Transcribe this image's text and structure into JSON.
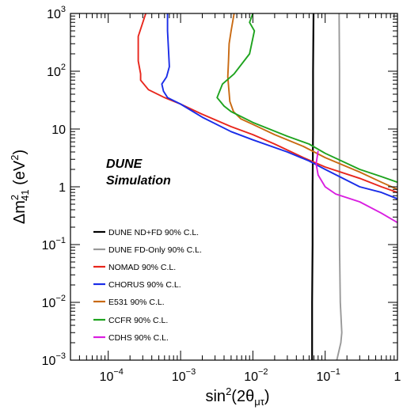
{
  "chart_data": {
    "type": "line",
    "title": "",
    "xlabel": {
      "base": "sin",
      "sup": "2",
      "rest": "(2θ",
      "sub": "μτ",
      "end": ")"
    },
    "ylabel": {
      "pre": "Δm",
      "sup": "2",
      "sub": "41",
      "post": " (eV",
      "unitsup": "2",
      "close": ")"
    },
    "xscale": "log",
    "yscale": "log",
    "xlim": [
      3e-05,
      1
    ],
    "ylim": [
      0.001,
      1000
    ],
    "x_ticks": [
      {
        "value": 0.0001,
        "base": "10",
        "exp": "−4"
      },
      {
        "value": 0.001,
        "base": "10",
        "exp": "−3"
      },
      {
        "value": 0.01,
        "base": "10",
        "exp": "−2"
      },
      {
        "value": 0.1,
        "base": "10",
        "exp": "−1"
      },
      {
        "value": 1,
        "base": "1",
        "exp": ""
      }
    ],
    "y_ticks": [
      {
        "value": 0.001,
        "base": "10",
        "exp": "−3"
      },
      {
        "value": 0.01,
        "base": "10",
        "exp": "−2"
      },
      {
        "value": 0.1,
        "base": "10",
        "exp": "−1"
      },
      {
        "value": 1,
        "base": "1",
        "exp": ""
      },
      {
        "value": 10,
        "base": "10",
        "exp": ""
      },
      {
        "value": 100,
        "base": "10",
        "exp": "2"
      },
      {
        "value": 1000,
        "base": "10",
        "exp": "3"
      }
    ],
    "annotation": [
      "DUNE",
      "Simulation"
    ],
    "legend_position": "left-center",
    "series": [
      {
        "name": "DUNE ND+FD 90% C.L.",
        "color": "#000000",
        "points": [
          [
            0.066,
            0.001
          ],
          [
            0.066,
            0.01
          ],
          [
            0.067,
            0.1
          ],
          [
            0.067,
            1
          ],
          [
            0.068,
            10
          ],
          [
            0.068,
            100
          ],
          [
            0.069,
            1000
          ]
        ]
      },
      {
        "name": "DUNE FD-Only 90% C.L.",
        "color": "#999999",
        "points": [
          [
            0.145,
            0.001
          ],
          [
            0.165,
            0.002
          ],
          [
            0.17,
            0.003
          ],
          [
            0.162,
            0.01
          ],
          [
            0.158,
            0.1
          ],
          [
            0.158,
            1
          ],
          [
            0.158,
            10
          ],
          [
            0.158,
            100
          ],
          [
            0.156,
            1000
          ]
        ]
      },
      {
        "name": "NOMAD 90% C.L.",
        "color": "#e8261c",
        "points": [
          [
            0.00033,
            1000
          ],
          [
            0.00026,
            400
          ],
          [
            0.00026,
            150
          ],
          [
            0.00028,
            90
          ],
          [
            0.00028,
            70
          ],
          [
            0.00036,
            48
          ],
          [
            0.0006,
            35
          ],
          [
            0.001,
            27
          ],
          [
            0.002,
            18
          ],
          [
            0.005,
            11
          ],
          [
            0.01,
            8
          ],
          [
            0.02,
            5.5
          ],
          [
            0.05,
            3.2
          ],
          [
            0.1,
            2.2
          ],
          [
            0.3,
            1.4
          ],
          [
            0.6,
            1.0
          ],
          [
            1,
            0.8
          ]
        ]
      },
      {
        "name": "CHORUS 90% C.L.",
        "color": "#1a2de8",
        "points": [
          [
            0.00066,
            1000
          ],
          [
            0.00066,
            500
          ],
          [
            0.0007,
            120
          ],
          [
            0.00064,
            80
          ],
          [
            0.00055,
            60
          ],
          [
            0.00058,
            45
          ],
          [
            0.00066,
            35
          ],
          [
            0.001,
            27
          ],
          [
            0.002,
            16
          ],
          [
            0.005,
            9
          ],
          [
            0.01,
            6.5
          ],
          [
            0.03,
            4
          ],
          [
            0.06,
            2.8
          ],
          [
            0.1,
            2.0
          ],
          [
            0.3,
            1.0
          ],
          [
            0.6,
            0.8
          ],
          [
            1,
            0.62
          ]
        ]
      },
      {
        "name": "E531 90% C.L.",
        "color": "#c96a12",
        "points": [
          [
            0.0055,
            1000
          ],
          [
            0.005,
            500
          ],
          [
            0.0047,
            300
          ],
          [
            0.0046,
            150
          ],
          [
            0.0045,
            80
          ],
          [
            0.0048,
            30
          ],
          [
            0.0054,
            20
          ],
          [
            0.0068,
            15
          ],
          [
            0.01,
            12
          ],
          [
            0.02,
            8
          ],
          [
            0.05,
            5
          ],
          [
            0.1,
            3.2
          ],
          [
            0.3,
            1.8
          ],
          [
            0.6,
            1.2
          ],
          [
            1,
            0.9
          ]
        ]
      },
      {
        "name": "CCFR 90% C.L.",
        "color": "#1ea31e",
        "points": [
          [
            0.01,
            1000
          ],
          [
            0.009,
            700
          ],
          [
            0.0105,
            500
          ],
          [
            0.009,
            200
          ],
          [
            0.0055,
            90
          ],
          [
            0.0038,
            60
          ],
          [
            0.0032,
            35
          ],
          [
            0.004,
            25
          ],
          [
            0.005,
            20
          ],
          [
            0.01,
            13
          ],
          [
            0.03,
            7.5
          ],
          [
            0.06,
            5.5
          ],
          [
            0.1,
            3.8
          ],
          [
            0.3,
            2.0
          ],
          [
            0.6,
            1.5
          ],
          [
            1,
            1.2
          ]
        ]
      },
      {
        "name": "CDHS 90% C.L.",
        "color": "#d91ee0",
        "points": [
          [
            0.08,
            4.2
          ],
          [
            0.075,
            2.5
          ],
          [
            0.08,
            1.6
          ],
          [
            0.1,
            1.0
          ],
          [
            0.14,
            0.75
          ],
          [
            0.3,
            0.55
          ],
          [
            0.6,
            0.35
          ],
          [
            1,
            0.24
          ]
        ]
      }
    ]
  }
}
